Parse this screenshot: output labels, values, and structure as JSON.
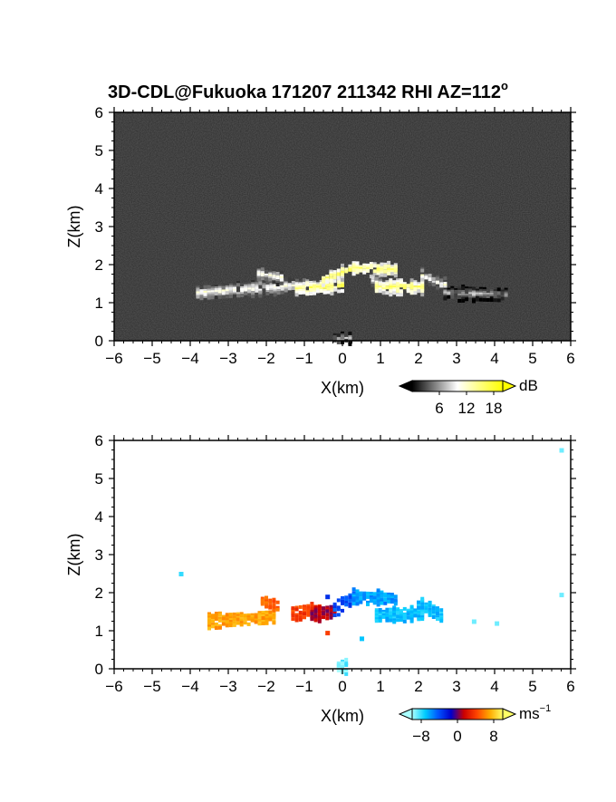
{
  "title": "3D-CDL@Fukuoka 171207 211342 RHI AZ=112",
  "title_superscript": "o",
  "chart_data": [
    {
      "type": "heatmap",
      "panel": "reflectivity",
      "xlabel": "X(km)",
      "ylabel": "Z(km)",
      "xlim": [
        -6,
        6
      ],
      "ylim": [
        0,
        6
      ],
      "x_ticks": [
        "-6",
        "-5",
        "-4",
        "-3",
        "-2",
        "-1",
        "0",
        "1",
        "2",
        "3",
        "4",
        "5",
        "6"
      ],
      "y_ticks": [
        "0",
        "1",
        "2",
        "3",
        "4",
        "5",
        "6"
      ],
      "colorbar": {
        "unit": "dB",
        "ticks": [
          "6",
          "12",
          "18"
        ],
        "range": [
          0,
          20
        ],
        "colors": [
          "#000000",
          "#ffffff",
          "#ffff00"
        ]
      },
      "background": "#2a2a2a",
      "echo_segments": [
        {
          "x": [
            -3.8,
            -1.0
          ],
          "z": [
            1.25,
            1.45
          ],
          "strength": "medium"
        },
        {
          "x": [
            -2.2,
            -1.6
          ],
          "z": [
            1.75,
            1.65
          ],
          "strength": "medium"
        },
        {
          "x": [
            -1.2,
            0.0
          ],
          "z": [
            1.35,
            1.45
          ],
          "strength": "high"
        },
        {
          "x": [
            -0.5,
            0.3
          ],
          "z": [
            1.6,
            1.9
          ],
          "strength": "high"
        },
        {
          "x": [
            0.3,
            1.4
          ],
          "z": [
            1.9,
            1.85
          ],
          "strength": "high"
        },
        {
          "x": [
            0.8,
            1.1
          ],
          "z": [
            1.6,
            1.4
          ],
          "strength": "medium"
        },
        {
          "x": [
            0.9,
            2.1
          ],
          "z": [
            1.4,
            1.4
          ],
          "strength": "high"
        },
        {
          "x": [
            2.1,
            2.7
          ],
          "z": [
            1.7,
            1.45
          ],
          "strength": "medium"
        },
        {
          "x": [
            2.7,
            4.3
          ],
          "z": [
            1.25,
            1.2
          ],
          "strength": "low"
        },
        {
          "x": [
            -0.2,
            0.2
          ],
          "z": [
            0.05,
            0.05
          ],
          "strength": "low"
        }
      ]
    },
    {
      "type": "heatmap",
      "panel": "velocity",
      "xlabel": "X(km)",
      "ylabel": "Z(km)",
      "xlim": [
        -6,
        6
      ],
      "ylim": [
        0,
        6
      ],
      "x_ticks": [
        "-6",
        "-5",
        "-4",
        "-3",
        "-2",
        "-1",
        "0",
        "1",
        "2",
        "3",
        "4",
        "5",
        "6"
      ],
      "y_ticks": [
        "0",
        "1",
        "2",
        "3",
        "4",
        "5",
        "6"
      ],
      "colorbar": {
        "unit": "ms",
        "unit_superscript": "-1",
        "ticks": [
          "-8",
          "0",
          "8"
        ],
        "range": [
          -10,
          10
        ],
        "colors": [
          "#aaffff",
          "#00ccff",
          "#0055ff",
          "#0000cc",
          "#cc0000",
          "#ff4400",
          "#ffaa00",
          "#ffff66"
        ]
      },
      "background": "#ffffff",
      "echo_segments": [
        {
          "x": [
            -3.5,
            -1.8
          ],
          "z": [
            1.25,
            1.35
          ],
          "velocity": 7
        },
        {
          "x": [
            -2.1,
            -1.7
          ],
          "z": [
            1.75,
            1.65
          ],
          "velocity": 5
        },
        {
          "x": [
            -1.3,
            -0.6
          ],
          "z": [
            1.45,
            1.55
          ],
          "velocity": 4
        },
        {
          "x": [
            -0.8,
            -0.2
          ],
          "z": [
            1.4,
            1.5
          ],
          "velocity": 1
        },
        {
          "x": [
            -0.2,
            0.3
          ],
          "z": [
            1.55,
            1.85
          ],
          "velocity": -4
        },
        {
          "x": [
            0.3,
            1.4
          ],
          "z": [
            1.9,
            1.85
          ],
          "velocity": -6
        },
        {
          "x": [
            0.9,
            2.1
          ],
          "z": [
            1.4,
            1.45
          ],
          "velocity": -7
        },
        {
          "x": [
            2.0,
            2.6
          ],
          "z": [
            1.7,
            1.4
          ],
          "velocity": -7
        },
        {
          "x": [
            -0.1,
            0.1
          ],
          "z": [
            0.05,
            0.05
          ],
          "velocity": -9
        }
      ],
      "isolated_points": [
        {
          "x": -4.25,
          "z": 2.5,
          "velocity": -8
        },
        {
          "x": -0.4,
          "z": 1.9,
          "velocity": -3
        },
        {
          "x": 3.45,
          "z": 1.25,
          "velocity": -9
        },
        {
          "x": 4.05,
          "z": 1.2,
          "velocity": -9
        },
        {
          "x": 5.75,
          "z": 5.75,
          "velocity": -9
        },
        {
          "x": 5.75,
          "z": 1.95,
          "velocity": -9
        },
        {
          "x": 0.5,
          "z": 0.8,
          "velocity": -7
        },
        {
          "x": -0.4,
          "z": 0.95,
          "velocity": 4
        }
      ]
    }
  ]
}
